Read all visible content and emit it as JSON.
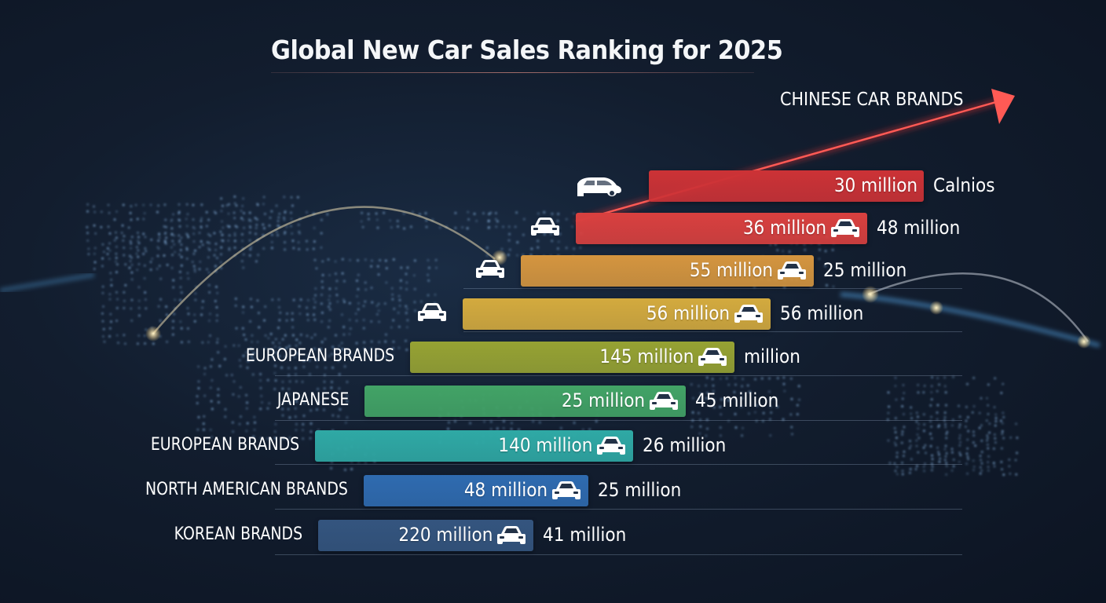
{
  "chart_data": {
    "type": "bar",
    "orientation": "horizontal",
    "title": "Global New Car Sales Ranking for 2025",
    "annotation": "CHINESE CAR BRANDS",
    "annotation_arrow": "trend-up-right",
    "xlabel": "",
    "ylabel": "",
    "grid": false,
    "legend": "none",
    "unit": "million",
    "rows": [
      {
        "category": "",
        "bar_label": "30 million",
        "value": 30,
        "side_label": "Calnios",
        "color": "#cc3236",
        "icon": "car-side-icon",
        "show_inner_car": false
      },
      {
        "category": "",
        "bar_label": "36 million",
        "value": 36,
        "side_label": "48 million",
        "color": "#d9403f",
        "icon": "car-front-icon",
        "show_inner_car": true
      },
      {
        "category": "",
        "bar_label": "55 million",
        "value": 55,
        "side_label": "25 million",
        "color": "#d4953f",
        "icon": "car-front-icon",
        "show_inner_car": true
      },
      {
        "category": "",
        "bar_label": "56 million",
        "value": 56,
        "side_label": "56 million",
        "color": "#d3aa3e",
        "icon": "car-front-icon",
        "show_inner_car": true
      },
      {
        "category": "EUROPEAN BRANDS",
        "bar_label": "145 million",
        "value": 145,
        "side_label": "million",
        "color": "#96a233",
        "icon": "",
        "show_inner_car": true
      },
      {
        "category": "JAPANESE",
        "bar_label": "25 million",
        "value": 25,
        "side_label": "45 million",
        "color": "#42a366",
        "icon": "",
        "show_inner_car": true
      },
      {
        "category": "EUROPEAN BRANDS",
        "bar_label": "140 million",
        "value": 140,
        "side_label": "26 million",
        "color": "#2fa9a5",
        "icon": "",
        "show_inner_car": true
      },
      {
        "category": "NORTH AMERICAN BRANDS",
        "bar_label": "48 million",
        "value": 48,
        "side_label": "25 million",
        "color": "#2f6bb0",
        "icon": "",
        "show_inner_car": true
      },
      {
        "category": "KOREAN BRANDS",
        "bar_label": "220 million",
        "value": 220,
        "side_label": "41 million",
        "color": "#34557f",
        "icon": "",
        "show_inner_car": true
      }
    ]
  },
  "colors": {
    "background": "#121d2e",
    "trend_arrow": "#ff4a4a",
    "text": "#ffffff"
  }
}
